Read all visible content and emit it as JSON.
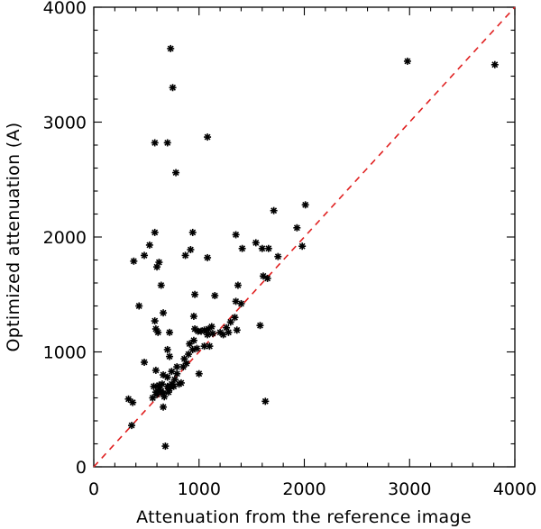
{
  "chart_data": {
    "type": "scatter",
    "title": "",
    "xlabel": "Attenuation from the reference image",
    "ylabel": "Optimized attenuation (A)",
    "xlim": [
      0,
      4000
    ],
    "ylim": [
      0,
      4000
    ],
    "xticks": [
      "0",
      "1000",
      "2000",
      "3000",
      "4000"
    ],
    "yticks": [
      "0",
      "1000",
      "2000",
      "3000",
      "4000"
    ],
    "x_tick_values": [
      0,
      1000,
      2000,
      3000,
      4000
    ],
    "y_tick_values": [
      0,
      1000,
      2000,
      3000,
      4000
    ],
    "grid": false,
    "marker": "*",
    "reference_line": {
      "type": "identity",
      "x": [
        0,
        4000
      ],
      "y": [
        0,
        4000
      ],
      "style": "dashed",
      "color": "#e02020"
    },
    "series": [
      {
        "color": "#000000",
        "points": [
          [
            730,
            3640
          ],
          [
            750,
            3300
          ],
          [
            580,
            2820
          ],
          [
            700,
            2820
          ],
          [
            1080,
            2870
          ],
          [
            780,
            2560
          ],
          [
            2980,
            3530
          ],
          [
            3810,
            3500
          ],
          [
            580,
            2040
          ],
          [
            530,
            1930
          ],
          [
            620,
            1780
          ],
          [
            380,
            1790
          ],
          [
            480,
            1840
          ],
          [
            600,
            1740
          ],
          [
            920,
            1890
          ],
          [
            940,
            2040
          ],
          [
            870,
            1840
          ],
          [
            1080,
            1820
          ],
          [
            1350,
            2020
          ],
          [
            1410,
            1900
          ],
          [
            1540,
            1950
          ],
          [
            1600,
            1900
          ],
          [
            1660,
            1900
          ],
          [
            1610,
            1660
          ],
          [
            1650,
            1640
          ],
          [
            1710,
            2230
          ],
          [
            1750,
            1830
          ],
          [
            1930,
            2080
          ],
          [
            1980,
            1920
          ],
          [
            2010,
            2280
          ],
          [
            1580,
            1230
          ],
          [
            1630,
            570
          ],
          [
            640,
            1580
          ],
          [
            430,
            1400
          ],
          [
            660,
            1340
          ],
          [
            960,
            1500
          ],
          [
            1150,
            1490
          ],
          [
            1370,
            1580
          ],
          [
            1350,
            1440
          ],
          [
            1400,
            1420
          ],
          [
            580,
            1270
          ],
          [
            590,
            1200
          ],
          [
            610,
            1170
          ],
          [
            720,
            1170
          ],
          [
            950,
            1310
          ],
          [
            960,
            1200
          ],
          [
            990,
            1180
          ],
          [
            1020,
            1180
          ],
          [
            1050,
            1190
          ],
          [
            1090,
            1200
          ],
          [
            1120,
            1220
          ],
          [
            1080,
            1150
          ],
          [
            1130,
            1160
          ],
          [
            1200,
            1170
          ],
          [
            1260,
            1210
          ],
          [
            1300,
            1260
          ],
          [
            1340,
            1300
          ],
          [
            1360,
            1190
          ],
          [
            1280,
            1170
          ],
          [
            1230,
            1150
          ],
          [
            950,
            1100
          ],
          [
            910,
            1070
          ],
          [
            940,
            1020
          ],
          [
            980,
            1030
          ],
          [
            1050,
            1050
          ],
          [
            1100,
            1050
          ],
          [
            700,
            1020
          ],
          [
            720,
            960
          ],
          [
            860,
            940
          ],
          [
            900,
            980
          ],
          [
            790,
            870
          ],
          [
            850,
            870
          ],
          [
            880,
            900
          ],
          [
            740,
            830
          ],
          [
            660,
            800
          ],
          [
            590,
            840
          ],
          [
            570,
            700
          ],
          [
            620,
            690
          ],
          [
            590,
            650
          ],
          [
            640,
            660
          ],
          [
            660,
            640
          ],
          [
            710,
            650
          ],
          [
            700,
            700
          ],
          [
            740,
            720
          ],
          [
            770,
            760
          ],
          [
            760,
            700
          ],
          [
            810,
            720
          ],
          [
            830,
            730
          ],
          [
            650,
            720
          ],
          [
            600,
            630
          ],
          [
            560,
            600
          ],
          [
            670,
            610
          ],
          [
            330,
            590
          ],
          [
            370,
            560
          ],
          [
            660,
            520
          ],
          [
            480,
            910
          ],
          [
            1000,
            810
          ],
          [
            360,
            360
          ],
          [
            680,
            180
          ],
          [
            620,
            710
          ],
          [
            700,
            780
          ],
          [
            720,
            680
          ],
          [
            790,
            810
          ]
        ]
      }
    ]
  }
}
